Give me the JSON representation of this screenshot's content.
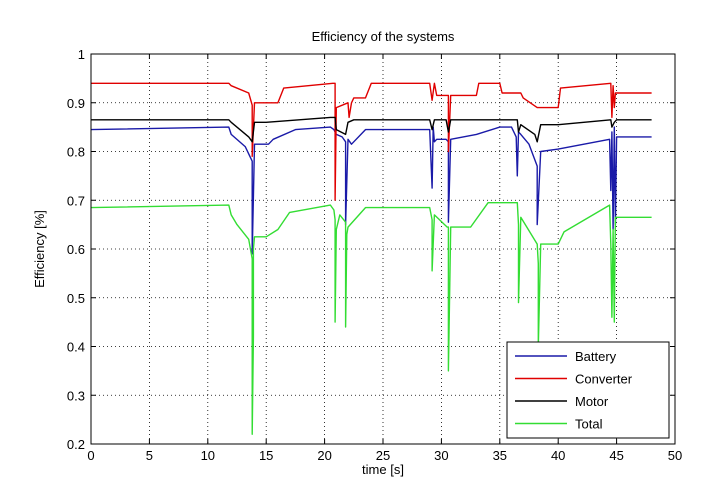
{
  "chart_data": {
    "type": "line",
    "title": "Efficiency of the systems",
    "xlabel": "time [s]",
    "ylabel": "Efficiency [%]",
    "xlim": [
      0,
      50
    ],
    "ylim": [
      0.2,
      1.0
    ],
    "xticks": [
      0,
      5,
      10,
      15,
      20,
      25,
      30,
      35,
      40,
      45,
      50
    ],
    "yticks": [
      0.2,
      0.3,
      0.4,
      0.5,
      0.6,
      0.7,
      0.8,
      0.9,
      1.0
    ],
    "grid": true,
    "legend_position": "bottom-right",
    "series": [
      {
        "name": "Battery",
        "color": "#1a1aa8",
        "x": [
          0,
          11.8,
          12.0,
          13.2,
          13.8,
          13.8,
          14.0,
          15.2,
          15.6,
          17.5,
          20.5,
          20.8,
          21.0,
          21.5,
          21.8,
          21.8,
          22.0,
          22.3,
          23.5,
          29.0,
          29.2,
          29.3,
          29.4,
          29.6,
          30.4,
          30.6,
          30.6,
          30.8,
          33.0,
          35.0,
          36.0,
          36.4,
          36.5,
          36.6,
          36.8,
          37.5,
          38.2,
          38.2,
          38.5,
          40.0,
          44.4,
          44.5,
          44.6,
          44.7,
          44.8,
          44.9,
          45.0,
          48.0
        ],
        "y": [
          0.845,
          0.85,
          0.835,
          0.81,
          0.78,
          0.59,
          0.815,
          0.815,
          0.825,
          0.845,
          0.85,
          0.845,
          0.835,
          0.83,
          0.82,
          0.65,
          0.825,
          0.815,
          0.845,
          0.845,
          0.725,
          0.85,
          0.82,
          0.825,
          0.825,
          0.82,
          0.655,
          0.825,
          0.835,
          0.85,
          0.85,
          0.83,
          0.75,
          0.84,
          0.835,
          0.815,
          0.77,
          0.65,
          0.8,
          0.805,
          0.825,
          0.72,
          0.84,
          0.64,
          0.85,
          0.65,
          0.83,
          0.83
        ]
      },
      {
        "name": "Converter",
        "color": "#e00000",
        "x": [
          0,
          11.8,
          12.0,
          13.5,
          13.8,
          13.8,
          14.0,
          16.0,
          16.5,
          20.7,
          20.9,
          20.9,
          21.0,
          22.0,
          22.1,
          22.3,
          22.5,
          23.5,
          24.0,
          29.0,
          29.2,
          29.4,
          29.6,
          30.5,
          30.6,
          30.6,
          30.8,
          33.0,
          33.2,
          35.0,
          35.2,
          36.8,
          37.0,
          38.2,
          38.4,
          40.0,
          40.2,
          44.5,
          44.6,
          44.7,
          44.8,
          44.9,
          45.0,
          48.0
        ],
        "y": [
          0.94,
          0.94,
          0.935,
          0.92,
          0.895,
          0.79,
          0.9,
          0.9,
          0.93,
          0.94,
          0.94,
          0.7,
          0.89,
          0.9,
          0.87,
          0.9,
          0.91,
          0.91,
          0.94,
          0.94,
          0.905,
          0.94,
          0.915,
          0.915,
          0.915,
          0.8,
          0.915,
          0.915,
          0.94,
          0.94,
          0.92,
          0.92,
          0.91,
          0.89,
          0.89,
          0.89,
          0.93,
          0.94,
          0.87,
          0.935,
          0.89,
          0.92,
          0.92,
          0.92
        ]
      },
      {
        "name": "Motor",
        "color": "#000000",
        "x": [
          0,
          11.8,
          12.0,
          13.5,
          13.8,
          14.0,
          15.0,
          20.5,
          20.9,
          21.0,
          21.8,
          22.0,
          22.5,
          29.0,
          29.2,
          29.4,
          30.4,
          30.6,
          30.8,
          36.5,
          36.6,
          36.8,
          38.0,
          38.2,
          38.5,
          40.0,
          44.5,
          44.6,
          44.8,
          45.0,
          48.0
        ],
        "y": [
          0.865,
          0.865,
          0.86,
          0.83,
          0.82,
          0.86,
          0.86,
          0.87,
          0.87,
          0.845,
          0.835,
          0.86,
          0.865,
          0.865,
          0.845,
          0.865,
          0.865,
          0.84,
          0.865,
          0.865,
          0.84,
          0.855,
          0.835,
          0.82,
          0.855,
          0.855,
          0.865,
          0.85,
          0.86,
          0.865,
          0.865
        ]
      },
      {
        "name": "Total",
        "color": "#33dd33",
        "x": [
          0,
          11.8,
          12.0,
          12.5,
          13.5,
          13.8,
          13.8,
          13.9,
          13.9,
          14.0,
          14.2,
          15.0,
          16.0,
          17.0,
          20.5,
          20.8,
          20.9,
          20.9,
          21.0,
          21.3,
          21.8,
          21.8,
          21.9,
          22.0,
          23.5,
          25.0,
          29.0,
          29.2,
          29.2,
          29.4,
          30.5,
          30.6,
          30.6,
          30.8,
          32.5,
          34.0,
          36.5,
          36.6,
          36.6,
          36.8,
          38.2,
          38.3,
          38.3,
          38.5,
          40.0,
          40.5,
          44.4,
          44.5,
          44.6,
          44.7,
          44.8,
          44.9,
          45.0,
          48.0
        ],
        "y": [
          0.685,
          0.69,
          0.67,
          0.65,
          0.62,
          0.58,
          0.22,
          0.42,
          0.6,
          0.625,
          0.625,
          0.625,
          0.64,
          0.675,
          0.69,
          0.68,
          0.66,
          0.45,
          0.64,
          0.67,
          0.655,
          0.44,
          0.63,
          0.645,
          0.685,
          0.685,
          0.685,
          0.66,
          0.555,
          0.67,
          0.645,
          0.645,
          0.35,
          0.645,
          0.645,
          0.695,
          0.695,
          0.65,
          0.49,
          0.665,
          0.61,
          0.57,
          0.4,
          0.61,
          0.61,
          0.635,
          0.69,
          0.61,
          0.46,
          0.64,
          0.45,
          0.665,
          0.665,
          0.665
        ]
      }
    ]
  }
}
